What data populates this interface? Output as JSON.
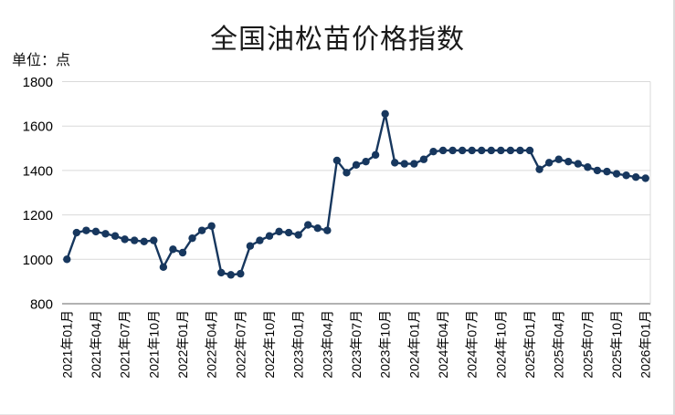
{
  "chart_data": {
    "type": "line",
    "title": "全国油松苗价格指数",
    "unit_label": "单位：点",
    "ylabel": "点",
    "ylim": [
      800,
      1800
    ],
    "y_ticks": [
      1800,
      1600,
      1400,
      1200,
      1000,
      800
    ],
    "x_tick_interval": 3,
    "x_tick_labels": [
      "2021年01月",
      "2021年04月",
      "2021年07月",
      "2021年10月",
      "2022年01月",
      "2022年04月",
      "2022年07月",
      "2022年10月",
      "2023年01月",
      "2023年04月",
      "2023年07月",
      "2023年10月",
      "2024年01月",
      "2024年04月",
      "2024年07月",
      "2024年10月",
      "2025年01月",
      "2025年04月",
      "2025年07月",
      "2025年10月",
      "2026年01月"
    ],
    "grid": "horizontal",
    "legend_position": "none",
    "series": [
      {
        "name": "全国油松苗价格指数",
        "start_month": "2021-01",
        "end_month": "2026-01",
        "frequency": "monthly",
        "values": [
          1000,
          1120,
          1130,
          1125,
          1115,
          1105,
          1090,
          1085,
          1080,
          1085,
          965,
          1045,
          1030,
          1095,
          1130,
          1150,
          940,
          930,
          935,
          1060,
          1085,
          1105,
          1125,
          1120,
          1110,
          1155,
          1140,
          1130,
          1445,
          1390,
          1425,
          1440,
          1470,
          1655,
          1435,
          1430,
          1430,
          1450,
          1485,
          1490,
          1490,
          1490,
          1490,
          1490,
          1490,
          1490,
          1490,
          1490,
          1490,
          1405,
          1435,
          1450,
          1440,
          1430,
          1415,
          1400,
          1395,
          1385,
          1378,
          1370,
          1365
        ]
      }
    ],
    "colors": {
      "line": "#17375E",
      "grid": "#D9D9D9",
      "axis": "#999999",
      "text": "#000000",
      "background": "#FFFFFF"
    }
  }
}
